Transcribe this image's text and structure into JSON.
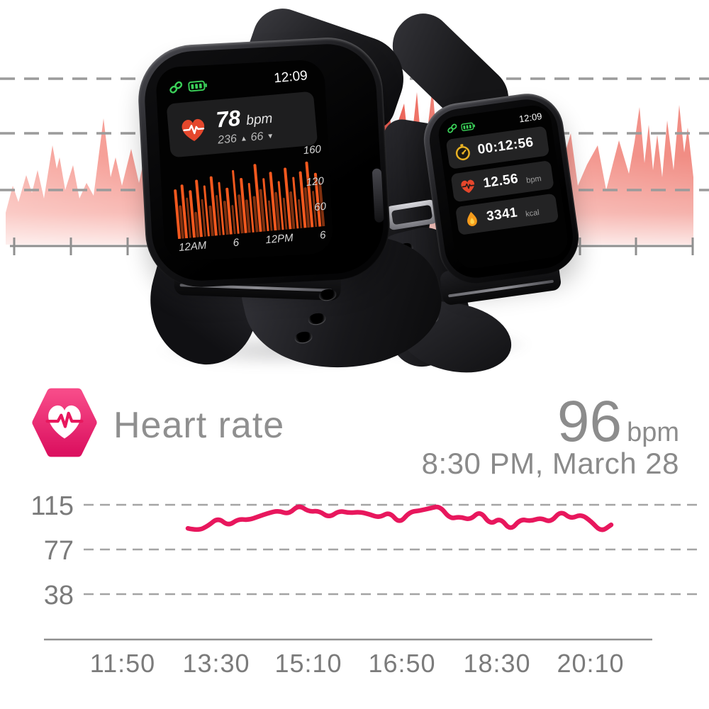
{
  "colors": {
    "accent_pink": "#e8175d",
    "hex_icon_pink": "#ee2e6f",
    "bar_orange": "#f2581e",
    "bar_dim_orange": "#80300f",
    "status_green": "#3bd159",
    "wave_salmon": "#f0897e",
    "text_gray": "#8a8a8a"
  },
  "watch1": {
    "status_time": "12:09",
    "heart_card": {
      "value": "78",
      "unit": "bpm",
      "max": "236",
      "max_icon": "▲",
      "min": "66",
      "min_icon": "▼"
    }
  },
  "watch2": {
    "status_time": "12:09",
    "cards": [
      {
        "icon": "stopwatch-icon",
        "value": "00:12:56",
        "unit": ""
      },
      {
        "icon": "heart-icon",
        "value": "12.56",
        "unit": "bpm"
      },
      {
        "icon": "flame-icon",
        "value": "3341",
        "unit": "kcal"
      }
    ]
  },
  "summary": {
    "title": "Heart rate",
    "value": "96",
    "unit": "bpm",
    "timestamp": "8:30 PM, March 28"
  },
  "chart_data": [
    {
      "type": "bar",
      "context": "watch1-screen-hourly-heart-rate",
      "x_axis_labels": [
        "12AM",
        "6",
        "12PM",
        "6"
      ],
      "y_axis_labels": [
        "160",
        "120",
        "60"
      ],
      "ylim": [
        0,
        170
      ],
      "values": [
        118,
        78,
        128,
        95,
        112,
        60,
        135,
        88,
        120,
        72,
        140,
        95,
        125,
        80,
        110,
        68,
        150,
        92,
        130,
        78,
        118,
        85,
        160,
        100,
        125,
        72,
        138,
        90,
        115,
        75,
        145,
        88,
        122,
        68,
        132,
        95,
        155,
        85,
        128,
        105
      ]
    },
    {
      "type": "line",
      "context": "daily-heart-rate-trend",
      "title": "Heart rate",
      "y_ticks": [
        115,
        77,
        38
      ],
      "x_ticks": [
        "11:50",
        "13:30",
        "15:10",
        "16:50",
        "18:30",
        "20:10"
      ],
      "current": {
        "value": 96,
        "unit": "bpm",
        "time": "8:30 PM, March 28"
      },
      "grid": "dashed-horizontal",
      "legend": "none",
      "line_color": "#e8175d",
      "series": [
        {
          "name": "heart-rate-bpm",
          "values": [
            95,
            93,
            97,
            104,
            97,
            103,
            102,
            105,
            108,
            110,
            107,
            115,
            109,
            110,
            104,
            110,
            108,
            109,
            107,
            104,
            109,
            99,
            109,
            110,
            112,
            114,
            103,
            105,
            102,
            110,
            98,
            104,
            93,
            103,
            101,
            104,
            100,
            110,
            103,
            107,
            101,
            92,
            98
          ]
        }
      ]
    }
  ]
}
